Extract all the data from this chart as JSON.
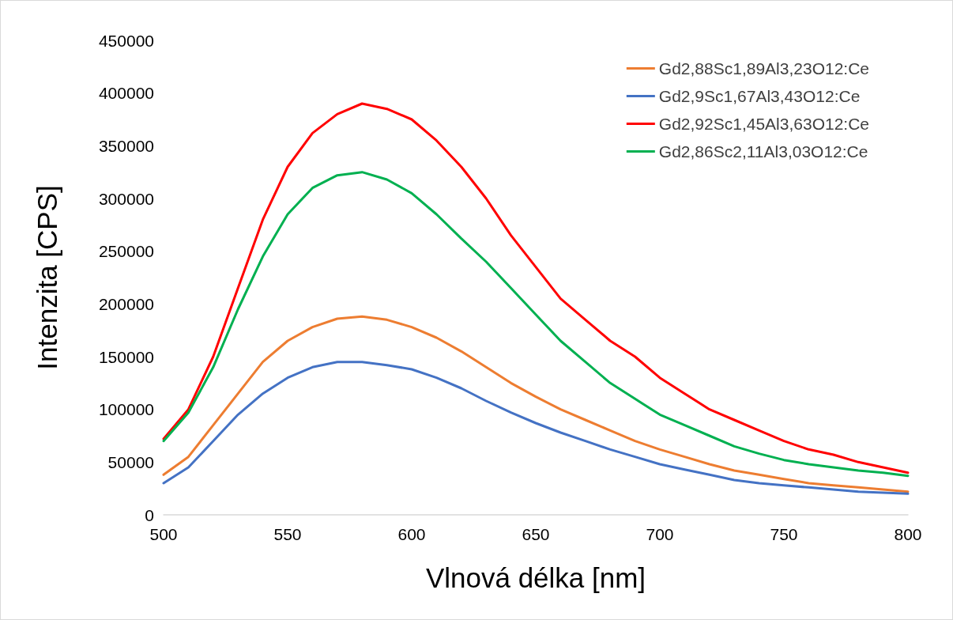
{
  "chart_data": {
    "type": "line",
    "xlabel": "Vlnová délka [nm]",
    "ylabel": "Intenzita [CPS]",
    "x": [
      500,
      510,
      520,
      530,
      540,
      550,
      560,
      570,
      580,
      590,
      600,
      610,
      620,
      630,
      640,
      650,
      660,
      670,
      680,
      690,
      700,
      710,
      720,
      730,
      740,
      750,
      760,
      770,
      780,
      790,
      800
    ],
    "series": [
      {
        "name": "Gd2,88Sc1,89Al3,23O12:Ce",
        "color": "#ed7d31",
        "values": [
          38000,
          55000,
          85000,
          115000,
          145000,
          165000,
          178000,
          186000,
          188000,
          185000,
          178000,
          168000,
          155000,
          140000,
          125000,
          112000,
          100000,
          90000,
          80000,
          70000,
          62000,
          55000,
          48000,
          42000,
          38000,
          34000,
          30000,
          28000,
          26000,
          24000,
          22000
        ]
      },
      {
        "name": "Gd2,9Sc1,67Al3,43O12:Ce",
        "color": "#4472c4",
        "values": [
          30000,
          45000,
          70000,
          95000,
          115000,
          130000,
          140000,
          145000,
          145000,
          142000,
          138000,
          130000,
          120000,
          108000,
          97000,
          87000,
          78000,
          70000,
          62000,
          55000,
          48000,
          43000,
          38000,
          33000,
          30000,
          28000,
          26000,
          24000,
          22000,
          21000,
          20000
        ]
      },
      {
        "name": "Gd2,92Sc1,45Al3,63O12:Ce",
        "color": "#ff0000",
        "values": [
          72000,
          100000,
          150000,
          215000,
          280000,
          330000,
          362000,
          380000,
          390000,
          385000,
          375000,
          355000,
          330000,
          300000,
          265000,
          235000,
          205000,
          185000,
          165000,
          150000,
          130000,
          115000,
          100000,
          90000,
          80000,
          70000,
          62000,
          57000,
          50000,
          45000,
          40000
        ]
      },
      {
        "name": "Gd2,86Sc2,11Al3,03O12:Ce",
        "color": "#00b050",
        "values": [
          70000,
          97000,
          140000,
          195000,
          245000,
          285000,
          310000,
          322000,
          325000,
          318000,
          305000,
          285000,
          262000,
          240000,
          215000,
          190000,
          165000,
          145000,
          125000,
          110000,
          95000,
          85000,
          75000,
          65000,
          58000,
          52000,
          48000,
          45000,
          42000,
          40000,
          37000
        ]
      }
    ],
    "xlim": [
      500,
      800
    ],
    "xticks": [
      500,
      550,
      600,
      650,
      700,
      750,
      800
    ],
    "ylim": [
      0,
      450000
    ],
    "yticks": [
      0,
      50000,
      100000,
      150000,
      200000,
      250000,
      300000,
      350000,
      400000,
      450000
    ],
    "grid": false,
    "legend": "top right",
    "marker": "none",
    "line_style": "solid"
  }
}
